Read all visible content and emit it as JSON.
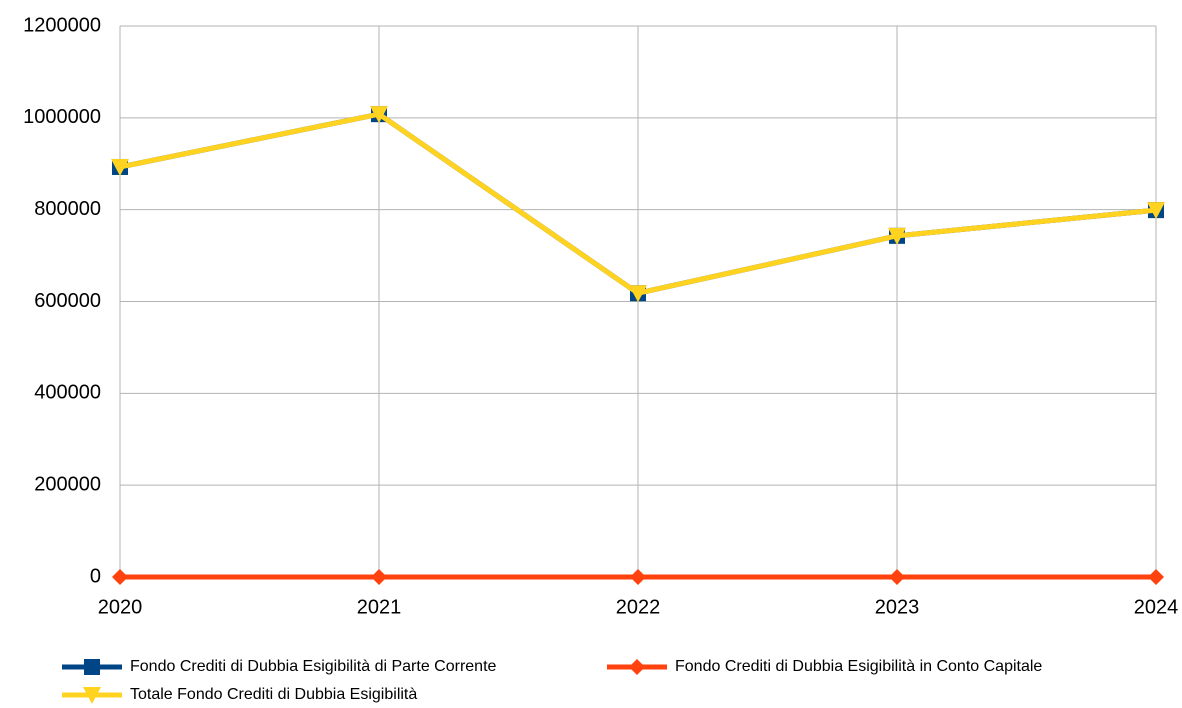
{
  "chart_data": {
    "type": "line",
    "categories": [
      "2020",
      "2021",
      "2022",
      "2023",
      "2024"
    ],
    "series": [
      {
        "name": "Fondo Crediti di Dubbia Esigibilità di Parte Corrente",
        "color": "#004586",
        "marker": "square",
        "values": [
          893000,
          1008000,
          618000,
          743000,
          799000
        ]
      },
      {
        "name": "Fondo Crediti di Dubbia Esigibilità in Conto Capitale",
        "color": "#ff420e",
        "marker": "diamond",
        "values": [
          0,
          0,
          0,
          0,
          0
        ]
      },
      {
        "name": "Totale Fondo Crediti di Dubbia Esigibilità",
        "color": "#ffd320",
        "marker": "triangle-down",
        "values": [
          893000,
          1008000,
          618000,
          743000,
          799000
        ]
      }
    ],
    "ylim": [
      0,
      1200000
    ],
    "yticks": [
      0,
      200000,
      400000,
      600000,
      800000,
      1000000,
      1200000
    ],
    "grid": true,
    "legend": "bottom"
  }
}
